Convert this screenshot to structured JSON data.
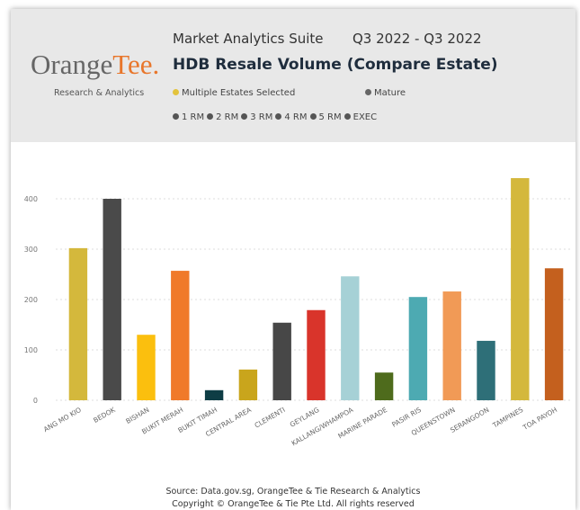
{
  "header": {
    "brand_a": "Orange",
    "brand_b": "Tee.",
    "brand_sub": "Research & Analytics",
    "suite": "Market Analytics Suite",
    "period": "Q3 2022 - Q3 2022",
    "filters": [
      "Multiple Estates Selected",
      "Mature"
    ],
    "flat_types": [
      "1 RM",
      "2 RM",
      "3 RM",
      "4 RM",
      "5 RM",
      "EXEC"
    ]
  },
  "chart_data": {
    "type": "bar",
    "title": "HDB Resale Volume (Compare Estate)",
    "categories": [
      "ANG MO KIO",
      "BEDOK",
      "BISHAN",
      "BUKIT MERAH",
      "BUKIT TIMAH",
      "CENTRAL AREA",
      "CLEMENTI",
      "GEYLANG",
      "KALLANG/WHAMPOA",
      "MARINE PARADE",
      "PASIR RIS",
      "QUEENSTOWN",
      "SERANGOON",
      "TAMPINES",
      "TOA PAYOH"
    ],
    "values": [
      302,
      400,
      130,
      257,
      20,
      61,
      154,
      179,
      246,
      55,
      205,
      216,
      118,
      441,
      262
    ],
    "colors": [
      "#d4b83c",
      "#4a4a4a",
      "#fbbf0e",
      "#f07a2a",
      "#0e3d45",
      "#c9a51c",
      "#474747",
      "#d9342b",
      "#a6d1d6",
      "#4e6b1c",
      "#4daab2",
      "#f19a56",
      "#2e6f78",
      "#d4b83c",
      "#c4601e"
    ],
    "ylim": [
      0,
      450
    ],
    "yticks": [
      0,
      100,
      200,
      300,
      400
    ],
    "grid": true
  },
  "footer": [
    "Source: Data.gov.sg, OrangeTee & Tie Research & Analytics",
    "Copyright © OrangeTee & Tie Pte Ltd. All rights reserved"
  ]
}
